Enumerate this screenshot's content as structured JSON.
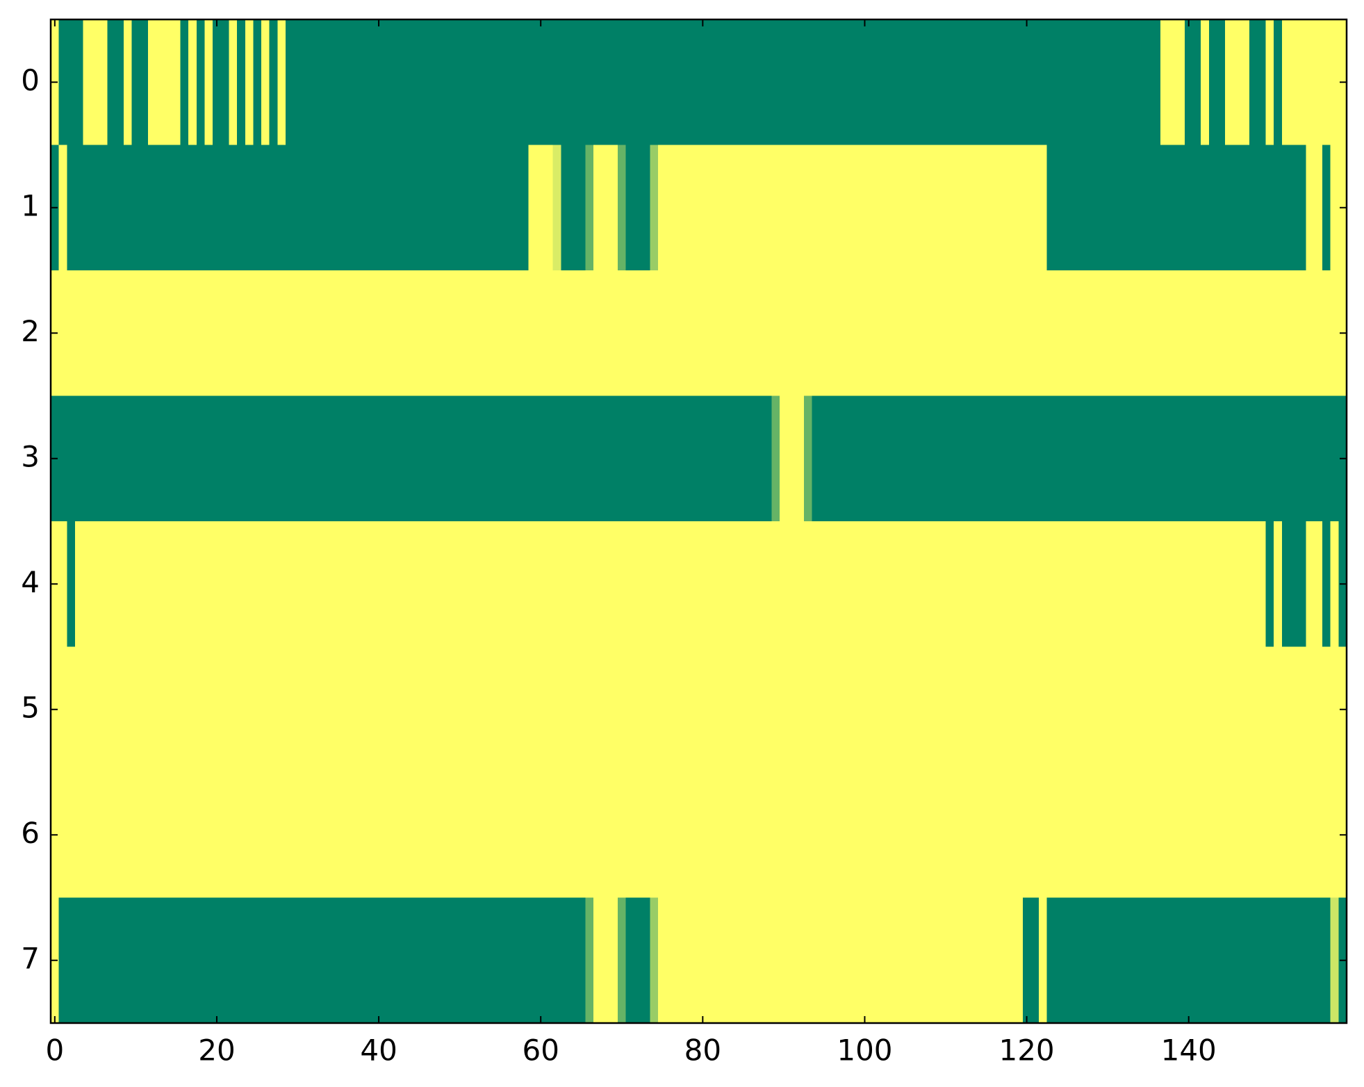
{
  "chart_data": {
    "type": "heatmap",
    "colormap": {
      "low": "#008066",
      "high": "#ffff66"
    },
    "vlim": [
      0,
      1
    ],
    "xlim": [
      -0.5,
      159.5
    ],
    "ylim": [
      7.5,
      -0.5
    ],
    "xticks": [
      0,
      20,
      40,
      60,
      80,
      100,
      120,
      140
    ],
    "yticks": [
      0,
      1,
      2,
      3,
      4,
      5,
      6,
      7
    ],
    "values": [
      [
        1,
        0,
        0,
        0,
        1,
        1,
        1,
        0,
        0,
        1,
        0,
        0,
        1,
        1,
        1,
        1,
        0,
        1,
        0,
        1,
        0,
        0,
        1,
        0,
        1,
        0,
        1,
        0,
        1,
        0,
        0,
        0,
        0,
        0,
        0,
        0,
        0,
        0,
        0,
        0,
        0,
        0,
        0,
        0,
        0,
        0,
        0,
        0,
        0,
        0,
        0,
        0,
        0,
        0,
        0,
        0,
        0,
        0,
        0,
        0,
        0,
        0,
        0,
        0,
        0,
        0,
        0,
        0,
        0,
        0,
        0,
        0,
        0,
        0,
        0,
        0,
        0,
        0,
        0,
        0,
        0,
        0,
        0,
        0,
        0,
        0,
        0,
        0,
        0,
        0,
        0,
        0,
        0,
        0,
        0,
        0,
        0,
        0,
        0,
        0,
        0,
        0,
        0,
        0,
        0,
        0,
        0,
        0,
        0,
        0,
        0,
        0,
        0,
        0,
        0,
        0,
        0,
        0,
        0,
        0,
        0,
        0,
        0,
        0,
        0,
        0,
        0,
        0,
        0,
        0,
        0,
        0,
        0,
        0,
        0,
        0,
        0,
        1,
        1,
        1,
        0,
        0,
        1,
        0,
        0,
        1,
        1,
        1,
        0,
        0,
        1,
        0,
        1,
        1,
        1,
        1,
        1,
        1,
        1,
        1
      ],
      [
        0,
        1,
        0,
        0,
        0,
        0,
        0,
        0,
        0,
        0,
        0,
        0,
        0,
        0,
        0,
        0,
        0,
        0,
        0,
        0,
        0,
        0,
        0,
        0,
        0,
        0,
        0,
        0,
        0,
        0,
        0,
        0,
        0,
        0,
        0,
        0,
        0,
        0,
        0,
        0,
        0,
        0,
        0,
        0,
        0,
        0,
        0,
        0,
        0,
        0,
        0,
        0,
        0,
        0,
        0,
        0,
        0,
        0,
        0,
        1,
        1,
        1,
        0.85,
        0,
        0,
        0,
        0.4,
        1,
        1,
        1,
        0.4,
        0,
        0,
        0,
        0.6,
        1,
        1,
        1,
        1,
        1,
        1,
        1,
        1,
        1,
        1,
        1,
        1,
        1,
        1,
        1,
        1,
        1,
        1,
        1,
        1,
        1,
        1,
        1,
        1,
        1,
        1,
        1,
        1,
        1,
        1,
        1,
        1,
        1,
        1,
        1,
        1,
        1,
        1,
        1,
        1,
        1,
        1,
        1,
        1,
        1,
        1,
        1,
        1,
        0,
        0,
        0,
        0,
        0,
        0,
        0,
        0,
        0,
        0,
        0,
        0,
        0,
        0,
        0,
        0,
        0,
        0,
        0,
        0,
        0,
        0,
        0,
        0,
        0,
        0,
        0,
        0,
        0,
        0,
        0,
        0,
        1,
        1,
        0,
        1,
        1
      ],
      [
        1,
        1,
        1,
        1,
        1,
        1,
        1,
        1,
        1,
        1,
        1,
        1,
        1,
        1,
        1,
        1,
        1,
        1,
        1,
        1,
        1,
        1,
        1,
        1,
        1,
        1,
        1,
        1,
        1,
        1,
        1,
        1,
        1,
        1,
        1,
        1,
        1,
        1,
        1,
        1,
        1,
        1,
        1,
        1,
        1,
        1,
        1,
        1,
        1,
        1,
        1,
        1,
        1,
        1,
        1,
        1,
        1,
        1,
        1,
        1,
        1,
        1,
        1,
        1,
        1,
        1,
        1,
        1,
        1,
        1,
        1,
        1,
        1,
        1,
        1,
        1,
        1,
        1,
        1,
        1,
        1,
        1,
        1,
        1,
        1,
        1,
        1,
        1,
        1,
        1,
        1,
        1,
        1,
        1,
        1,
        1,
        1,
        1,
        1,
        1,
        1,
        1,
        1,
        1,
        1,
        1,
        1,
        1,
        1,
        1,
        1,
        1,
        1,
        1,
        1,
        1,
        1,
        1,
        1,
        1,
        1,
        1,
        1,
        1,
        1,
        1,
        1,
        1,
        1,
        1,
        1,
        1,
        1,
        1,
        1,
        1,
        1,
        1,
        1,
        1,
        1,
        1,
        1,
        1,
        1,
        1,
        1,
        1,
        1,
        1,
        1,
        1,
        1,
        1,
        1,
        1,
        1,
        1,
        1,
        1
      ],
      [
        0,
        0,
        0,
        0,
        0,
        0,
        0,
        0,
        0,
        0,
        0,
        0,
        0,
        0,
        0,
        0,
        0,
        0,
        0,
        0,
        0,
        0,
        0,
        0,
        0,
        0,
        0,
        0,
        0,
        0,
        0,
        0,
        0,
        0,
        0,
        0,
        0,
        0,
        0,
        0,
        0,
        0,
        0,
        0,
        0,
        0,
        0,
        0,
        0,
        0,
        0,
        0,
        0,
        0,
        0,
        0,
        0,
        0,
        0,
        0,
        0,
        0,
        0,
        0,
        0,
        0,
        0,
        0,
        0,
        0,
        0,
        0,
        0,
        0,
        0,
        0,
        0,
        0,
        0,
        0,
        0,
        0,
        0,
        0,
        0,
        0,
        0,
        0,
        0,
        0.4,
        1,
        1,
        1,
        0.4,
        0,
        0,
        0,
        0,
        0,
        0,
        0,
        0,
        0,
        0,
        0,
        0,
        0,
        0,
        0,
        0,
        0,
        0,
        0,
        0,
        0,
        0,
        0,
        0,
        0,
        0,
        0,
        0,
        0,
        0,
        0,
        0,
        0,
        0,
        0,
        0,
        0,
        0,
        0,
        0,
        0,
        0,
        0,
        0,
        0,
        0,
        0,
        0,
        0,
        0,
        0,
        0,
        0,
        0,
        0,
        0,
        0,
        0,
        0,
        0,
        0,
        0,
        0,
        0,
        0,
        0
      ],
      [
        1,
        1,
        0,
        1,
        1,
        1,
        1,
        1,
        1,
        1,
        1,
        1,
        1,
        1,
        1,
        1,
        1,
        1,
        1,
        1,
        1,
        1,
        1,
        1,
        1,
        1,
        1,
        1,
        1,
        1,
        1,
        1,
        1,
        1,
        1,
        1,
        1,
        1,
        1,
        1,
        1,
        1,
        1,
        1,
        1,
        1,
        1,
        1,
        1,
        1,
        1,
        1,
        1,
        1,
        1,
        1,
        1,
        1,
        1,
        1,
        1,
        1,
        1,
        1,
        1,
        1,
        1,
        1,
        1,
        1,
        1,
        1,
        1,
        1,
        1,
        1,
        1,
        1,
        1,
        1,
        1,
        1,
        1,
        1,
        1,
        1,
        1,
        1,
        1,
        1,
        1,
        1,
        1,
        1,
        1,
        1,
        1,
        1,
        1,
        1,
        1,
        1,
        1,
        1,
        1,
        1,
        1,
        1,
        1,
        1,
        1,
        1,
        1,
        1,
        1,
        1,
        1,
        1,
        1,
        1,
        1,
        1,
        1,
        1,
        1,
        1,
        1,
        1,
        1,
        1,
        1,
        1,
        1,
        1,
        1,
        1,
        1,
        1,
        1,
        1,
        1,
        1,
        1,
        1,
        1,
        1,
        1,
        1,
        1,
        1,
        0,
        1,
        0,
        0,
        0,
        1,
        1,
        0,
        1,
        0
      ],
      [
        1,
        1,
        1,
        1,
        1,
        1,
        1,
        1,
        1,
        1,
        1,
        1,
        1,
        1,
        1,
        1,
        1,
        1,
        1,
        1,
        1,
        1,
        1,
        1,
        1,
        1,
        1,
        1,
        1,
        1,
        1,
        1,
        1,
        1,
        1,
        1,
        1,
        1,
        1,
        1,
        1,
        1,
        1,
        1,
        1,
        1,
        1,
        1,
        1,
        1,
        1,
        1,
        1,
        1,
        1,
        1,
        1,
        1,
        1,
        1,
        1,
        1,
        1,
        1,
        1,
        1,
        1,
        1,
        1,
        1,
        1,
        1,
        1,
        1,
        1,
        1,
        1,
        1,
        1,
        1,
        1,
        1,
        1,
        1,
        1,
        1,
        1,
        1,
        1,
        1,
        1,
        1,
        1,
        1,
        1,
        1,
        1,
        1,
        1,
        1,
        1,
        1,
        1,
        1,
        1,
        1,
        1,
        1,
        1,
        1,
        1,
        1,
        1,
        1,
        1,
        1,
        1,
        1,
        1,
        1,
        1,
        1,
        1,
        1,
        1,
        1,
        1,
        1,
        1,
        1,
        1,
        1,
        1,
        1,
        1,
        1,
        1,
        1,
        1,
        1,
        1,
        1,
        1,
        1,
        1,
        1,
        1,
        1,
        1,
        1,
        1,
        1,
        1,
        1,
        1,
        1,
        1,
        1,
        1,
        1
      ],
      [
        1,
        1,
        1,
        1,
        1,
        1,
        1,
        1,
        1,
        1,
        1,
        1,
        1,
        1,
        1,
        1,
        1,
        1,
        1,
        1,
        1,
        1,
        1,
        1,
        1,
        1,
        1,
        1,
        1,
        1,
        1,
        1,
        1,
        1,
        1,
        1,
        1,
        1,
        1,
        1,
        1,
        1,
        1,
        1,
        1,
        1,
        1,
        1,
        1,
        1,
        1,
        1,
        1,
        1,
        1,
        1,
        1,
        1,
        1,
        1,
        1,
        1,
        1,
        1,
        1,
        1,
        1,
        1,
        1,
        1,
        1,
        1,
        1,
        1,
        1,
        1,
        1,
        1,
        1,
        1,
        1,
        1,
        1,
        1,
        1,
        1,
        1,
        1,
        1,
        1,
        1,
        1,
        1,
        1,
        1,
        1,
        1,
        1,
        1,
        1,
        1,
        1,
        1,
        1,
        1,
        1,
        1,
        1,
        1,
        1,
        1,
        1,
        1,
        1,
        1,
        1,
        1,
        1,
        1,
        1,
        1,
        1,
        1,
        1,
        1,
        1,
        1,
        1,
        1,
        1,
        1,
        1,
        1,
        1,
        1,
        1,
        1,
        1,
        1,
        1,
        1,
        1,
        1,
        1,
        1,
        1,
        1,
        1,
        1,
        1,
        1,
        1,
        1,
        1,
        1,
        1,
        1,
        1,
        1,
        1
      ],
      [
        1,
        0,
        0,
        0,
        0,
        0,
        0,
        0,
        0,
        0,
        0,
        0,
        0,
        0,
        0,
        0,
        0,
        0,
        0,
        0,
        0,
        0,
        0,
        0,
        0,
        0,
        0,
        0,
        0,
        0,
        0,
        0,
        0,
        0,
        0,
        0,
        0,
        0,
        0,
        0,
        0,
        0,
        0,
        0,
        0,
        0,
        0,
        0,
        0,
        0,
        0,
        0,
        0,
        0,
        0,
        0,
        0,
        0,
        0,
        0,
        0,
        0,
        0,
        0,
        0,
        0,
        0.4,
        1,
        1,
        1,
        0.4,
        0,
        0,
        0,
        0.6,
        1,
        1,
        1,
        1,
        1,
        1,
        1,
        1,
        1,
        1,
        1,
        1,
        1,
        1,
        1,
        1,
        1,
        1,
        1,
        1,
        1,
        1,
        1,
        1,
        1,
        1,
        1,
        1,
        1,
        1,
        1,
        1,
        1,
        1,
        1,
        1,
        1,
        1,
        1,
        1,
        1,
        1,
        1,
        1,
        1,
        0,
        0,
        1,
        0,
        0,
        0,
        0,
        0,
        0,
        0,
        0,
        0,
        0,
        0,
        0,
        0,
        0,
        0,
        0,
        0,
        0,
        0,
        0,
        0,
        0,
        0,
        0,
        0,
        0,
        0,
        0,
        0,
        0,
        0,
        0,
        0,
        0,
        0,
        0.8,
        0
      ]
    ]
  }
}
